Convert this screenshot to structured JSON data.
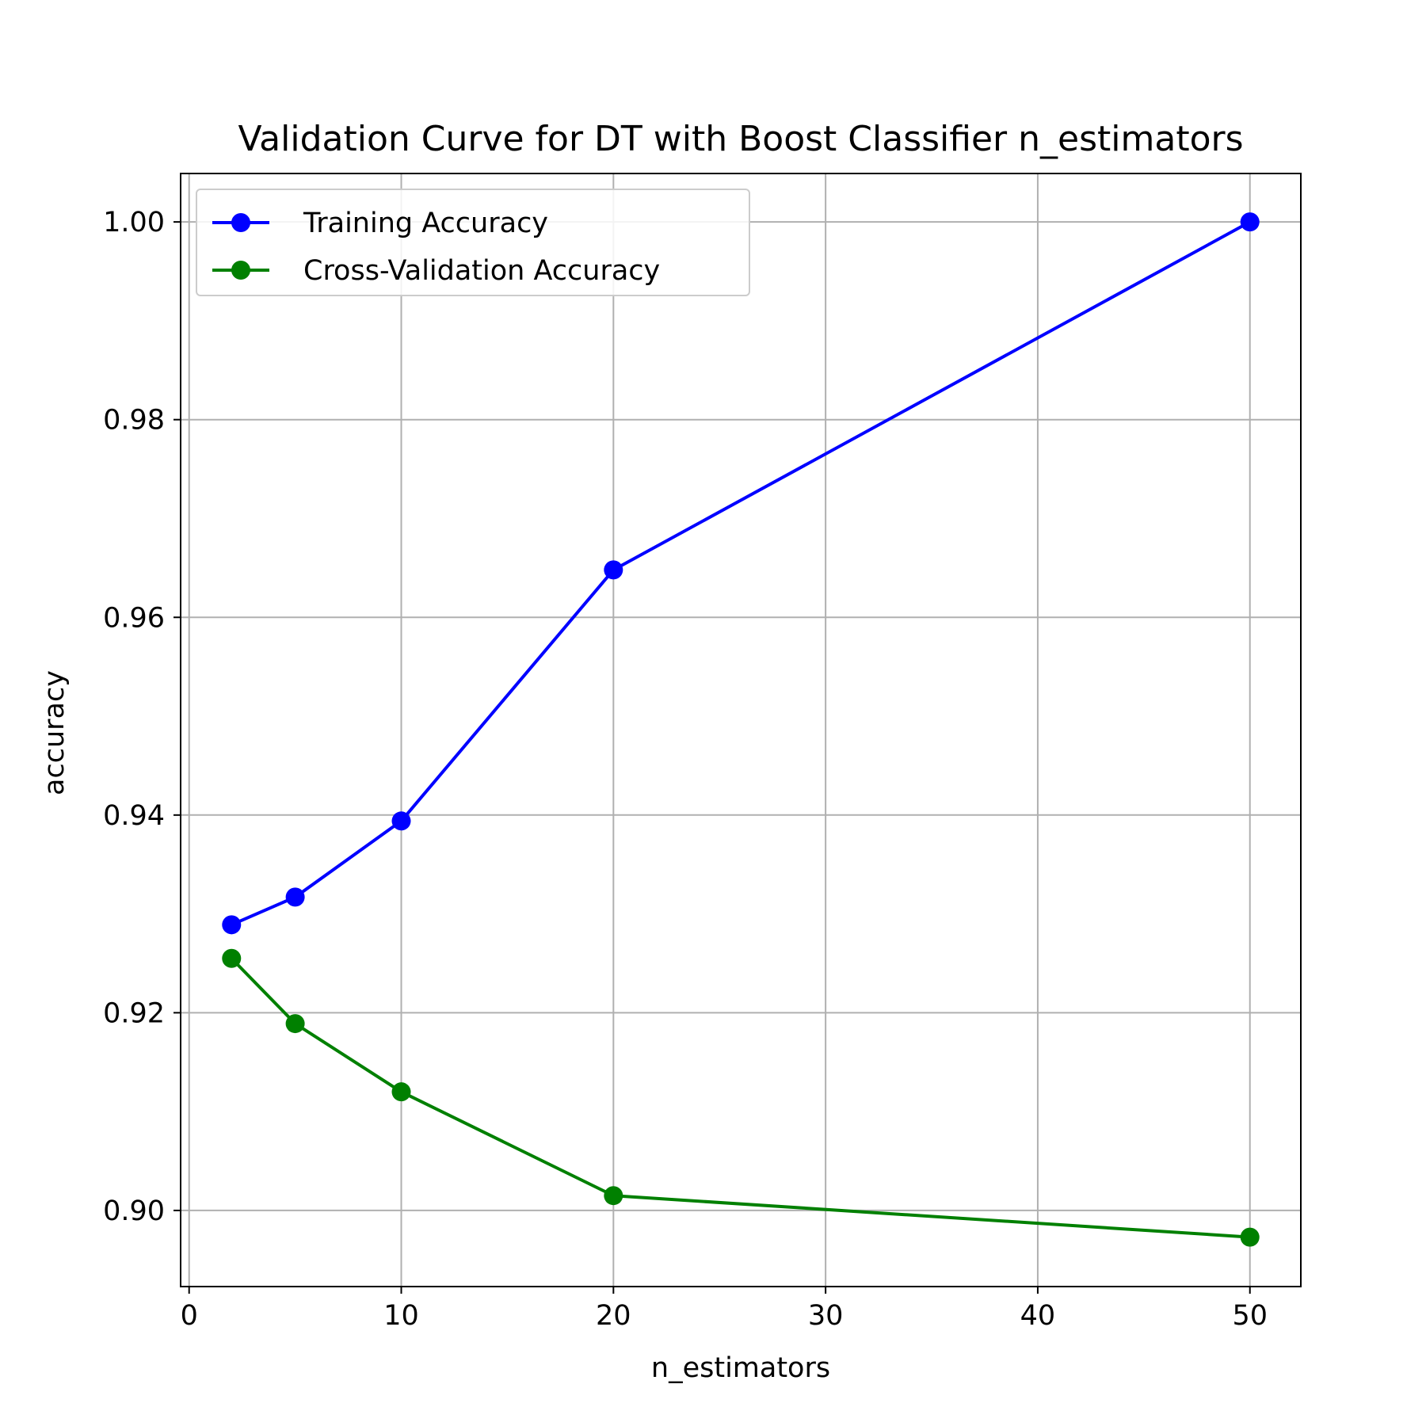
{
  "chart_data": {
    "type": "line",
    "title": "Validation Curve for DT with Boost Classifier n_estimators",
    "xlabel": "n_estimators",
    "ylabel": "accuracy",
    "x": [
      2,
      5,
      10,
      20,
      50
    ],
    "xlim": [
      -0.4,
      52.4
    ],
    "ylim": [
      0.8923,
      1.0049
    ],
    "xticks": [
      0,
      10,
      20,
      30,
      40,
      50
    ],
    "xtick_labels": [
      "0",
      "10",
      "20",
      "30",
      "40",
      "50"
    ],
    "yticks": [
      0.9,
      0.92,
      0.94,
      0.96,
      0.98,
      1.0
    ],
    "ytick_labels": [
      "0.90",
      "0.92",
      "0.94",
      "0.96",
      "0.98",
      "1.00"
    ],
    "grid": true,
    "legend_position": "top-left",
    "series": [
      {
        "name": "Training Accuracy",
        "color": "#0000ff",
        "values": [
          0.9289,
          0.9317,
          0.9394,
          0.9648,
          1.0
        ]
      },
      {
        "name": "Cross-Validation Accuracy",
        "color": "#008000",
        "values": [
          0.9255,
          0.9189,
          0.912,
          0.9015,
          0.8973
        ]
      }
    ]
  }
}
